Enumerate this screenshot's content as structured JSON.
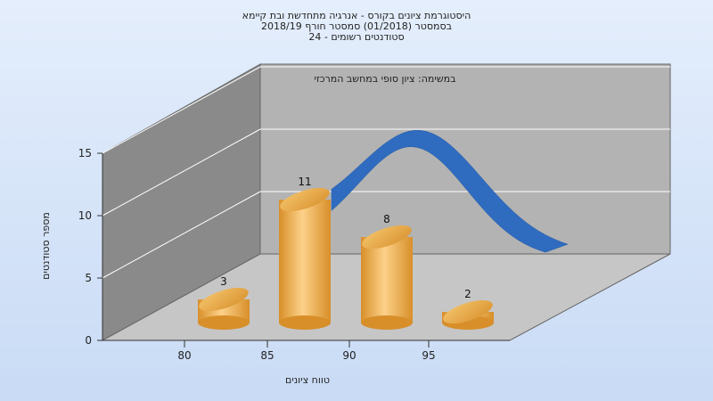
{
  "chart_data": {
    "type": "bar",
    "title_lines": [
      "היסטוגרמת ציונים בקורס - אנרגיה מתחדשת ובת קיימא",
      "בסמסטר   (01/2018)  סמסטר חורף 2018/19",
      "סטודנטים רשומים - 24"
    ],
    "annotation": "במשימה: ציון סופי במחשב המרכזי",
    "xlabel": "טווח ציונים",
    "ylabel": "מספר סטודנטים",
    "categories": [
      "80",
      "85",
      "90",
      "95"
    ],
    "values": [
      3,
      11,
      8,
      2
    ],
    "ylim": [
      0,
      15
    ],
    "yticks": [
      "0",
      "5",
      "10",
      "15"
    ],
    "curve": "normal-distribution",
    "colors": {
      "bar": "#e8a33a",
      "curve": "#2f6cc0",
      "wall": "#a9a9a9",
      "floor": "#c4c4c4"
    }
  }
}
